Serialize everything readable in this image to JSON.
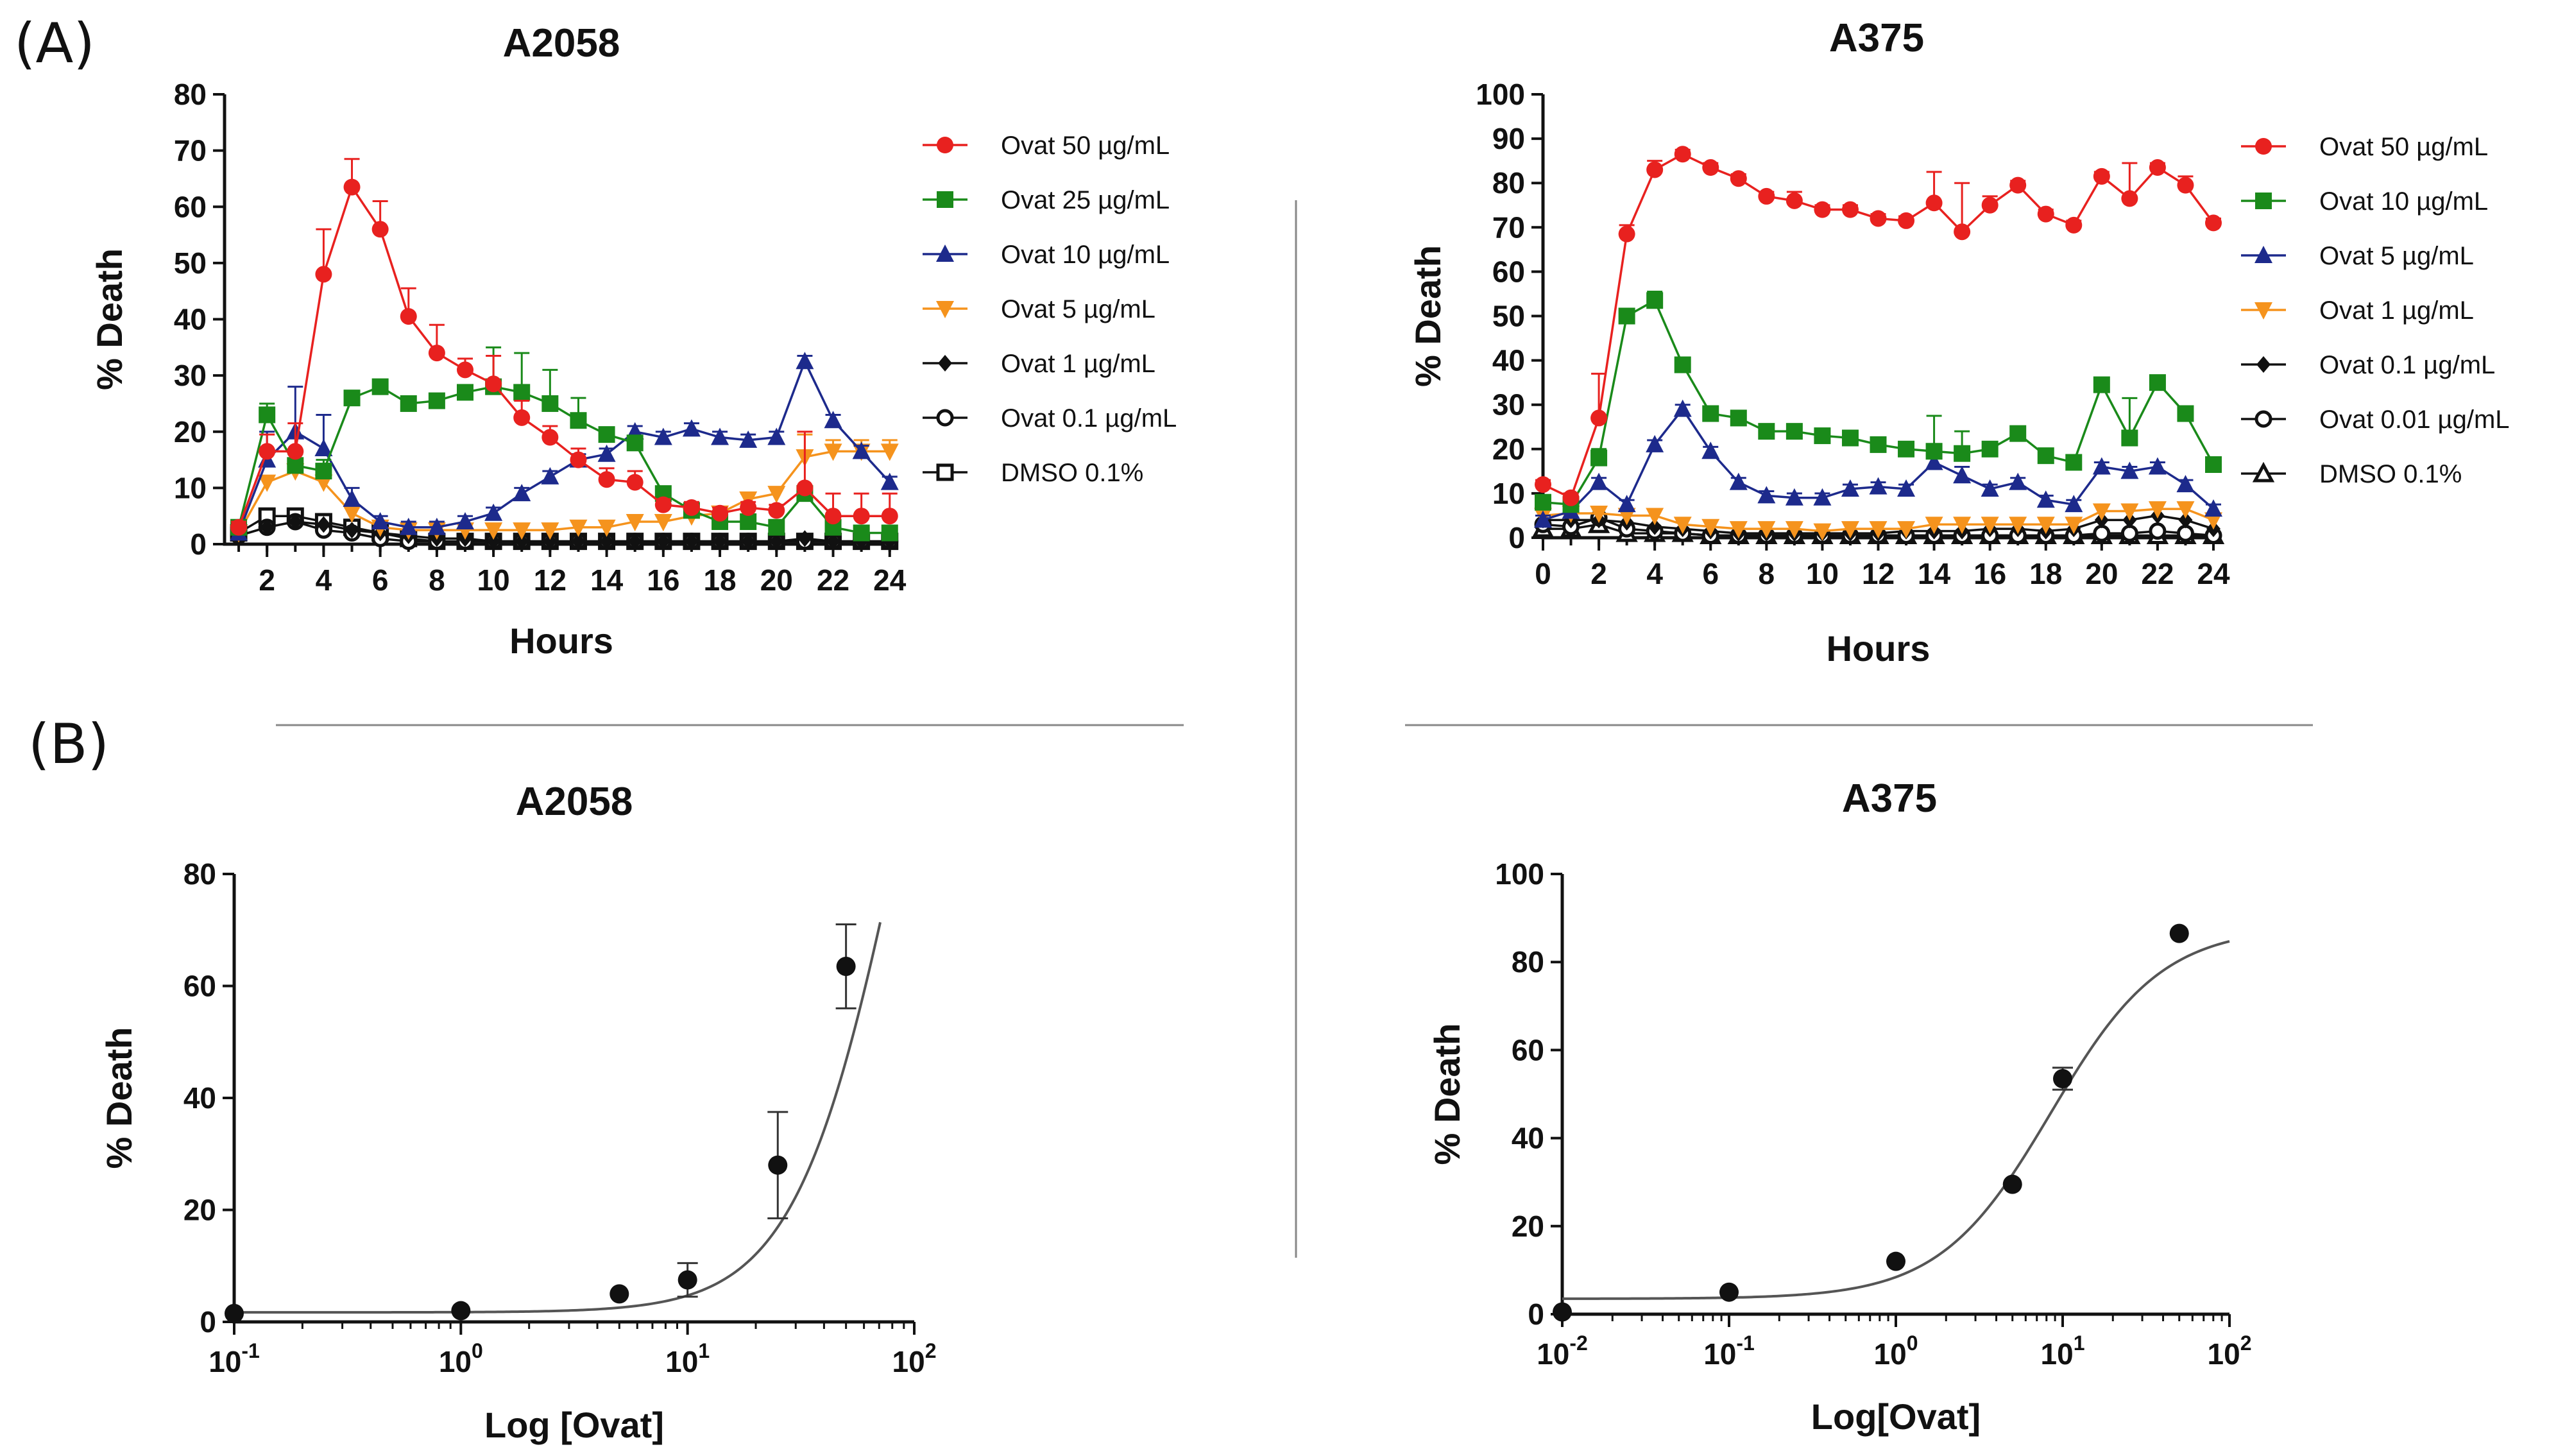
{
  "panel_labels": {
    "a": "(A)",
    "b": "(B)"
  },
  "chart_data": [
    {
      "id": "a2058-time",
      "type": "line",
      "title": "A2058",
      "xlabel": "Hours",
      "ylabel": "% Death",
      "xlim": [
        0.5,
        24.3
      ],
      "ylim": [
        0,
        80
      ],
      "xticks": [
        2,
        4,
        6,
        8,
        10,
        12,
        14,
        16,
        18,
        20,
        22,
        24
      ],
      "xtick_labels": [
        "2",
        "4",
        "6",
        "8",
        "10",
        "12",
        "14",
        "16",
        "18",
        "20",
        "22",
        "24"
      ],
      "yticks": [
        0,
        10,
        20,
        30,
        40,
        50,
        60,
        70,
        80
      ],
      "ytick_labels": [
        "0",
        "10",
        "20",
        "30",
        "40",
        "50",
        "60",
        "70",
        "80"
      ],
      "x": [
        1,
        2,
        3,
        4,
        5,
        6,
        7,
        8,
        9,
        10,
        11,
        12,
        13,
        14,
        15,
        16,
        17,
        18,
        19,
        20,
        21,
        22,
        23,
        24
      ],
      "legend_position": "right",
      "series": [
        {
          "name": "Ovat 50 µg/mL",
          "color": "#e8211f",
          "marker": "circle",
          "values": [
            3,
            16.5,
            16.5,
            48,
            63.5,
            56,
            40.5,
            34,
            31,
            28.5,
            22.5,
            19,
            15,
            11.5,
            11,
            7,
            6.5,
            5.5,
            6.5,
            6,
            10,
            5,
            5,
            5
          ],
          "errors": [
            1,
            3,
            5,
            8,
            5,
            5,
            5,
            5,
            2,
            5,
            3,
            2,
            2,
            2,
            2,
            1,
            1,
            1,
            1,
            1,
            10,
            4,
            4,
            4
          ]
        },
        {
          "name": "Ovat 25 µg/mL",
          "color": "#1a8a1a",
          "marker": "square",
          "values": [
            3,
            23,
            14,
            13,
            26,
            28,
            25,
            25.5,
            27,
            28,
            27,
            25,
            22,
            19.5,
            18,
            9,
            6,
            4,
            4,
            3,
            9,
            3,
            2,
            2
          ],
          "errors": [
            1,
            2,
            2,
            2,
            1,
            1,
            1,
            1,
            1,
            7,
            7,
            6,
            4,
            1,
            1,
            1,
            1,
            1,
            1,
            1,
            1,
            1,
            1,
            1
          ]
        },
        {
          "name": "Ovat 10 µg/mL",
          "color": "#1d2a8c",
          "marker": "triangle-up",
          "values": [
            2,
            15,
            20,
            17,
            8,
            4,
            3,
            3,
            4,
            5.5,
            9,
            12,
            15,
            16,
            20,
            19,
            20.5,
            19,
            18.5,
            19,
            32.5,
            22,
            16.5,
            11
          ],
          "errors": [
            1,
            5,
            8,
            6,
            2,
            1,
            1,
            1,
            1,
            1,
            1,
            1,
            1,
            1,
            1,
            1,
            1,
            1,
            1,
            1,
            1,
            1,
            1,
            1
          ]
        },
        {
          "name": "Ovat 5 µg/mL",
          "color": "#f5931d",
          "marker": "triangle-down",
          "values": [
            2,
            11,
            13,
            11,
            5.5,
            3,
            2.5,
            2.5,
            2.5,
            2.5,
            2.5,
            2.5,
            3,
            3,
            4,
            4,
            5,
            5.5,
            8,
            9,
            15.5,
            16.5,
            16.5,
            16.5
          ],
          "errors": [
            0,
            1,
            1,
            1,
            1,
            1,
            1,
            1,
            1,
            1,
            1,
            1,
            1,
            1,
            1,
            1,
            1,
            1,
            1,
            1,
            4,
            2,
            2,
            2
          ]
        },
        {
          "name": "Ovat 1 µg/mL",
          "color": "#111111",
          "marker": "diamond",
          "values": [
            1.5,
            3,
            4,
            3.5,
            2.5,
            2,
            1.5,
            1,
            1,
            0.5,
            0.5,
            0.5,
            0.5,
            0.5,
            0.5,
            0.5,
            0.5,
            0.5,
            0.5,
            0.5,
            1,
            0.5,
            0.5,
            0.5
          ],
          "errors": []
        },
        {
          "name": "Ovat 0.1 µg/mL",
          "color": "#111111",
          "marker": "circle-open",
          "values": [
            1.5,
            3,
            4,
            2.5,
            2,
            1,
            0.5,
            0.5,
            0.5,
            0.5,
            0.5,
            0.5,
            0.5,
            0.5,
            0.5,
            0.5,
            0.5,
            0.5,
            0.5,
            0.5,
            0.5,
            0.5,
            0.5,
            0.5
          ],
          "errors": []
        },
        {
          "name": "DMSO 0.1%",
          "color": "#111111",
          "marker": "square-open",
          "values": [
            2,
            5,
            5,
            4,
            3,
            2,
            1,
            0.5,
            0.5,
            0.5,
            0.5,
            0.5,
            0.5,
            0.5,
            0.5,
            0.5,
            0.5,
            0.5,
            0.5,
            0.5,
            0.5,
            0.5,
            0.5,
            0.5
          ],
          "errors": []
        }
      ]
    },
    {
      "id": "a375-time",
      "type": "line",
      "title": "A375",
      "xlabel": "Hours",
      "ylabel": "% Death",
      "xlim": [
        0,
        24
      ],
      "ylim": [
        0,
        100
      ],
      "xticks": [
        0,
        2,
        4,
        6,
        8,
        10,
        12,
        14,
        16,
        18,
        20,
        22,
        24
      ],
      "xtick_labels": [
        "0",
        "2",
        "4",
        "6",
        "8",
        "10",
        "12",
        "14",
        "16",
        "18",
        "20",
        "22",
        "24"
      ],
      "yticks": [
        0,
        10,
        20,
        30,
        40,
        50,
        60,
        70,
        80,
        90,
        100
      ],
      "ytick_labels": [
        "0",
        "10",
        "20",
        "30",
        "40",
        "50",
        "60",
        "70",
        "80",
        "90",
        "100"
      ],
      "x": [
        0,
        1,
        2,
        3,
        4,
        5,
        6,
        7,
        8,
        9,
        10,
        11,
        12,
        13,
        14,
        15,
        16,
        17,
        18,
        19,
        20,
        21,
        22,
        23,
        24
      ],
      "legend_position": "right",
      "series": [
        {
          "name": "Ovat 50 µg/mL",
          "color": "#e8211f",
          "marker": "circle",
          "values": [
            12,
            9,
            27,
            68.5,
            83,
            86.5,
            83.5,
            81,
            77,
            76,
            74,
            74,
            72,
            71.5,
            75.5,
            69,
            75,
            79.5,
            73,
            70.5,
            81.5,
            76.5,
            83.5,
            79.5,
            71
          ],
          "errors": [
            1,
            1,
            10,
            2,
            2,
            1,
            1,
            1,
            1,
            2,
            1,
            1,
            1,
            1,
            7,
            11,
            2,
            1,
            1,
            1,
            1,
            8,
            1,
            2,
            1
          ]
        },
        {
          "name": "Ovat 10 µg/mL",
          "color": "#1a8a1a",
          "marker": "square",
          "values": [
            8,
            7.5,
            18,
            50,
            53.5,
            39,
            28,
            27,
            24,
            24,
            23,
            22.5,
            21,
            20,
            19.5,
            19,
            20,
            23.5,
            18.5,
            17,
            34.5,
            22.5,
            35,
            28,
            16.5
          ],
          "errors": [
            1,
            1,
            2,
            1,
            2,
            1,
            1,
            1,
            1,
            1,
            1,
            1,
            1,
            1,
            8,
            5,
            1,
            1,
            1,
            1,
            1,
            9,
            1,
            1,
            1
          ]
        },
        {
          "name": "Ovat 5 µg/mL",
          "color": "#1d2a8c",
          "marker": "triangle-up",
          "values": [
            4,
            6,
            12.5,
            7.5,
            21,
            29,
            19.5,
            12.5,
            9.5,
            9,
            9,
            11,
            11.5,
            11,
            17,
            14,
            11,
            12.5,
            8.5,
            7.5,
            16,
            15,
            16,
            12,
            6.5
          ],
          "errors": [
            1,
            1,
            1,
            1,
            1,
            1,
            1,
            1,
            1,
            1,
            1,
            1,
            1,
            1,
            2,
            2,
            1,
            1,
            1,
            1,
            1,
            1,
            1,
            1,
            1
          ]
        },
        {
          "name": "Ovat 1 µg/mL",
          "color": "#f5931d",
          "marker": "triangle-down",
          "values": [
            5,
            5.5,
            5.5,
            5,
            5,
            3,
            2.5,
            2,
            2,
            2,
            1.5,
            2,
            2,
            2,
            3,
            3,
            3,
            3,
            3,
            3,
            6,
            6,
            6.5,
            6.5,
            4
          ],
          "errors": []
        },
        {
          "name": "Ovat 0.1 µg/mL",
          "color": "#111111",
          "marker": "diamond",
          "values": [
            4,
            4,
            4,
            3.5,
            2.5,
            2,
            1.5,
            1,
            1,
            1,
            1,
            1,
            1,
            1.5,
            1.5,
            1.5,
            2,
            2,
            1.5,
            2,
            4,
            4,
            5,
            4,
            2
          ],
          "errors": []
        },
        {
          "name": "Ovat 0.01 µg/mL",
          "color": "#111111",
          "marker": "circle-open",
          "values": [
            3,
            2.5,
            4.5,
            2,
            1.5,
            1,
            0.5,
            0.5,
            0.5,
            0.5,
            0.5,
            0.5,
            0.5,
            0.5,
            0.5,
            0.5,
            0.5,
            0.5,
            0.5,
            0.5,
            1,
            1,
            1.5,
            1,
            0.5
          ],
          "errors": []
        },
        {
          "name": "DMSO 0.1%",
          "color": "#111111",
          "marker": "triangle-open",
          "values": [
            2,
            2,
            3,
            1,
            1,
            1,
            0.5,
            0.5,
            0.5,
            0.5,
            0.5,
            0.5,
            0.5,
            0.5,
            0.5,
            0.5,
            0.5,
            0.5,
            0.5,
            0.5,
            0.5,
            0.5,
            0.5,
            0.5,
            0.5
          ],
          "errors": []
        }
      ]
    },
    {
      "id": "a2058-dose",
      "type": "scatter",
      "title": "A2058",
      "xlabel": "Log [Ovat]",
      "ylabel": "% Death",
      "xscale": "log",
      "xlim_log10": [
        -1,
        2
      ],
      "ylim": [
        0,
        80
      ],
      "xtick_exponents": [
        "-1",
        "0",
        "1",
        "2"
      ],
      "yticks": [
        0,
        20,
        40,
        60,
        80
      ],
      "ytick_labels": [
        "0",
        "20",
        "40",
        "60",
        "80"
      ],
      "points": {
        "x": [
          0.1,
          1,
          5,
          10,
          25,
          50
        ],
        "y": [
          1.5,
          2,
          5,
          7.5,
          28,
          63.5
        ],
        "errors": [
          0.3,
          0.3,
          0.5,
          3,
          9.5,
          7.5
        ]
      },
      "fit": {
        "bottom": 1.7,
        "top": 180,
        "ec50": 90,
        "hill": 1.85
      }
    },
    {
      "id": "a375-dose",
      "type": "scatter",
      "title": "A375",
      "xlabel": "Log[Ovat]",
      "ylabel": "% Death",
      "xscale": "log",
      "xlim_log10": [
        -2,
        2
      ],
      "ylim": [
        0,
        100
      ],
      "xtick_exponents": [
        "-2",
        "-1",
        "0",
        "1",
        "2"
      ],
      "yticks": [
        0,
        20,
        40,
        60,
        80,
        100
      ],
      "ytick_labels": [
        "0",
        "20",
        "40",
        "60",
        "80",
        "100"
      ],
      "points": {
        "x": [
          0.01,
          0.1,
          1,
          5,
          10,
          50
        ],
        "y": [
          0.5,
          5,
          12,
          29.5,
          53.5,
          86.5
        ],
        "errors": [
          0,
          0,
          0,
          0,
          2.5,
          0
        ]
      },
      "fit": {
        "bottom": 3.5,
        "top": 88,
        "ec50": 8.5,
        "hill": 1.3
      }
    }
  ]
}
